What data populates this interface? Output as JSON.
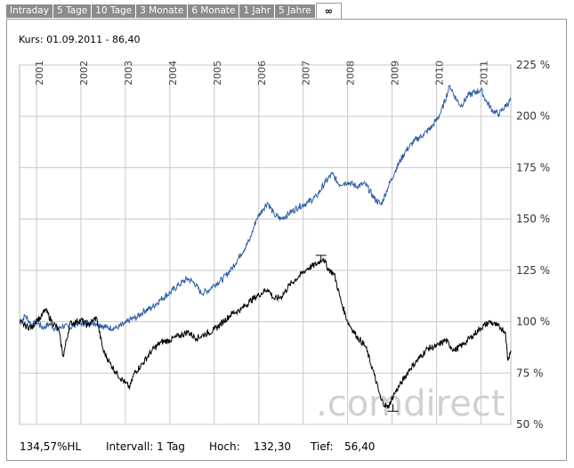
{
  "tabs": [
    {
      "label": "Intraday",
      "active": false
    },
    {
      "label": "5 Tage",
      "active": false
    },
    {
      "label": "10 Tage",
      "active": false
    },
    {
      "label": "3 Monate",
      "active": false
    },
    {
      "label": "6 Monate",
      "active": false
    },
    {
      "label": "1 Jahr",
      "active": false
    },
    {
      "label": "5 Jahre",
      "active": false
    },
    {
      "label": "∞",
      "active": true
    }
  ],
  "kurs": "Kurs: 01.09.2011 - 86,40",
  "footer": {
    "hl": "134,57%HL",
    "intervall": "Intervall: 1 Tag",
    "hoch_label": "Hoch:",
    "hoch_value": "132,30",
    "tief_label": "Tief:",
    "tief_value": "56,40"
  },
  "watermark": ".comdirect",
  "chart_data": {
    "type": "line",
    "x_tick_labels": [
      "2001",
      "2002",
      "2003",
      "2004",
      "2005",
      "2006",
      "2007",
      "2008",
      "2009",
      "2010",
      "2011"
    ],
    "y_tick_labels": [
      "225 %",
      "200 %",
      "175 %",
      "150 %",
      "125 %",
      "100 %",
      "75 %",
      "50 %"
    ],
    "ylim": [
      50,
      225
    ],
    "xlim": [
      2000.62,
      2011.67
    ],
    "grid": true,
    "series": [
      {
        "color": "#2f5ea8",
        "points": [
          [
            2000.62,
            99
          ],
          [
            2000.75,
            103
          ],
          [
            2000.9,
            98
          ],
          [
            2001.0,
            100
          ],
          [
            2001.15,
            97
          ],
          [
            2001.3,
            99
          ],
          [
            2001.45,
            96
          ],
          [
            2001.6,
            98
          ],
          [
            2001.75,
            97
          ],
          [
            2001.9,
            99
          ],
          [
            2002.0,
            99
          ],
          [
            2002.2,
            100
          ],
          [
            2002.4,
            99
          ],
          [
            2002.6,
            97
          ],
          [
            2002.8,
            97
          ],
          [
            2003.0,
            99
          ],
          [
            2003.1,
            101
          ],
          [
            2003.25,
            102
          ],
          [
            2003.4,
            105
          ],
          [
            2003.6,
            107
          ],
          [
            2003.8,
            111
          ],
          [
            2004.0,
            114
          ],
          [
            2004.2,
            118
          ],
          [
            2004.4,
            121
          ],
          [
            2004.55,
            119
          ],
          [
            2004.7,
            114
          ],
          [
            2004.85,
            115
          ],
          [
            2005.0,
            118
          ],
          [
            2005.2,
            121
          ],
          [
            2005.4,
            126
          ],
          [
            2005.6,
            133
          ],
          [
            2005.8,
            140
          ],
          [
            2005.95,
            150
          ],
          [
            2006.1,
            155
          ],
          [
            2006.2,
            158
          ],
          [
            2006.35,
            152
          ],
          [
            2006.5,
            150
          ],
          [
            2006.7,
            153
          ],
          [
            2006.9,
            156
          ],
          [
            2007.1,
            158
          ],
          [
            2007.3,
            161
          ],
          [
            2007.5,
            168
          ],
          [
            2007.65,
            172
          ],
          [
            2007.8,
            167
          ],
          [
            2008.0,
            168
          ],
          [
            2008.2,
            166
          ],
          [
            2008.4,
            167
          ],
          [
            2008.6,
            160
          ],
          [
            2008.75,
            157
          ],
          [
            2008.9,
            165
          ],
          [
            2009.1,
            175
          ],
          [
            2009.3,
            183
          ],
          [
            2009.5,
            188
          ],
          [
            2009.7,
            191
          ],
          [
            2009.9,
            195
          ],
          [
            2010.1,
            202
          ],
          [
            2010.3,
            215
          ],
          [
            2010.4,
            210
          ],
          [
            2010.55,
            205
          ],
          [
            2010.7,
            210
          ],
          [
            2010.9,
            212
          ],
          [
            2011.0,
            213
          ],
          [
            2011.1,
            208
          ],
          [
            2011.25,
            203
          ],
          [
            2011.4,
            201
          ],
          [
            2011.55,
            205
          ],
          [
            2011.67,
            208
          ]
        ]
      },
      {
        "color": "#000000",
        "points": [
          [
            2000.62,
            100
          ],
          [
            2000.75,
            98
          ],
          [
            2000.9,
            97
          ],
          [
            2001.0,
            101
          ],
          [
            2001.1,
            102
          ],
          [
            2001.2,
            106
          ],
          [
            2001.35,
            100
          ],
          [
            2001.5,
            96
          ],
          [
            2001.6,
            83
          ],
          [
            2001.75,
            99
          ],
          [
            2001.9,
            100
          ],
          [
            2002.0,
            101
          ],
          [
            2002.15,
            98
          ],
          [
            2002.35,
            102
          ],
          [
            2002.5,
            86
          ],
          [
            2002.65,
            80
          ],
          [
            2002.8,
            75
          ],
          [
            2003.0,
            70
          ],
          [
            2003.1,
            68
          ],
          [
            2003.2,
            75
          ],
          [
            2003.4,
            80
          ],
          [
            2003.6,
            86
          ],
          [
            2003.8,
            90
          ],
          [
            2004.0,
            91
          ],
          [
            2004.2,
            93
          ],
          [
            2004.4,
            95
          ],
          [
            2004.6,
            92
          ],
          [
            2004.8,
            94
          ],
          [
            2005.0,
            96
          ],
          [
            2005.2,
            100
          ],
          [
            2005.4,
            104
          ],
          [
            2005.6,
            106
          ],
          [
            2005.8,
            110
          ],
          [
            2006.0,
            113
          ],
          [
            2006.2,
            116
          ],
          [
            2006.35,
            111
          ],
          [
            2006.5,
            112
          ],
          [
            2006.7,
            118
          ],
          [
            2006.9,
            122
          ],
          [
            2007.1,
            126
          ],
          [
            2007.3,
            128
          ],
          [
            2007.45,
            131
          ],
          [
            2007.55,
            126
          ],
          [
            2007.7,
            123
          ],
          [
            2007.85,
            110
          ],
          [
            2008.0,
            100
          ],
          [
            2008.2,
            93
          ],
          [
            2008.4,
            88
          ],
          [
            2008.6,
            74
          ],
          [
            2008.75,
            62
          ],
          [
            2008.9,
            58
          ],
          [
            2009.05,
            65
          ],
          [
            2009.2,
            70
          ],
          [
            2009.4,
            77
          ],
          [
            2009.6,
            82
          ],
          [
            2009.8,
            87
          ],
          [
            2010.0,
            88
          ],
          [
            2010.2,
            91
          ],
          [
            2010.4,
            86
          ],
          [
            2010.6,
            89
          ],
          [
            2010.8,
            93
          ],
          [
            2011.0,
            97
          ],
          [
            2011.2,
            100
          ],
          [
            2011.35,
            98
          ],
          [
            2011.45,
            97
          ],
          [
            2011.55,
            95
          ],
          [
            2011.6,
            81
          ],
          [
            2011.67,
            86
          ]
        ]
      }
    ],
    "annotations": [
      {
        "type": "high-marker",
        "x": 2007.4,
        "y": 132.3
      },
      {
        "type": "low-marker",
        "x": 2009.02,
        "y": 56.4
      }
    ]
  }
}
